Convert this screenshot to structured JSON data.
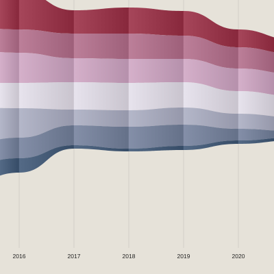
{
  "chart_data": {
    "type": "area",
    "subtype": "streamgraph",
    "title": "",
    "xlabel": "",
    "ylabel": "",
    "x": [
      "2016",
      "2017",
      "2018",
      "2019",
      "2020"
    ],
    "grid": true,
    "legend": "none",
    "x_range": [
      2015.65,
      2020.65
    ],
    "extrapolate_left": true,
    "extrapolate_right": true,
    "series": [
      {
        "color": "#3d5675",
        "values": [
          21,
          5,
          4,
          6,
          5
        ]
      },
      {
        "color": "#73809c",
        "values": [
          30,
          29,
          32,
          31,
          17
        ]
      },
      {
        "color": "#aaadc2",
        "values": [
          43,
          23,
          24,
          25,
          22
        ]
      },
      {
        "color": "#e4dfea",
        "values": [
          37,
          40,
          40,
          37,
          33
        ]
      },
      {
        "color": "#cfa5c3",
        "values": [
          44,
          35,
          35,
          34,
          33
        ]
      },
      {
        "color": "#b36d8b",
        "values": [
          34,
          36,
          37,
          34,
          31
        ]
      },
      {
        "color": "#9a2d44",
        "values": [
          56,
          34,
          38,
          36,
          26
        ]
      }
    ],
    "top_curve": [
      -13,
      15,
      11,
      16,
      43
    ]
  },
  "colors": {
    "background": "#e6e2d9",
    "gridline": "#cfcbc2",
    "tick_text": "#222222"
  }
}
